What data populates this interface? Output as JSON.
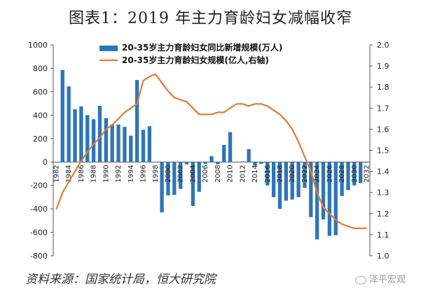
{
  "title": "图表1：2019 年主力育龄妇女减幅收窄",
  "source": "资料来源：国家统计局，恒大研究院",
  "watermark": "泽平宏观",
  "colors": {
    "bar": "#2e75b6",
    "line": "#e07b39",
    "axis": "#555555"
  },
  "chart_data": {
    "type": "bar+line",
    "legend": [
      {
        "name": "20-35岁主力育龄妇女同比新增规模(万人)",
        "kind": "bar"
      },
      {
        "name": "20-35岁主力育龄妇女规模(亿人,右轴)",
        "kind": "line"
      }
    ],
    "legend_position": "top-right",
    "x": [
      1982,
      1983,
      1984,
      1985,
      1986,
      1987,
      1988,
      1989,
      1990,
      1991,
      1992,
      1993,
      1994,
      1995,
      1996,
      1997,
      1998,
      1999,
      2000,
      2001,
      2002,
      2003,
      2004,
      2005,
      2006,
      2007,
      2008,
      2009,
      2010,
      2011,
      2012,
      2013,
      2014,
      2015,
      2016,
      2017,
      2018,
      2019,
      2020,
      2021,
      2022,
      2023,
      2024,
      2025,
      2026,
      2027,
      2028,
      2029,
      2030,
      2031,
      2032
    ],
    "x_tick_labels": [
      "1982",
      "1984",
      "1986",
      "1988",
      "1990",
      "1992",
      "1994",
      "1996",
      "1998",
      "2000",
      "2002",
      "2004",
      "2006",
      "2008",
      "2010",
      "2012",
      "2014",
      "2016",
      "2018",
      "2020",
      "2022",
      "2024",
      "2026",
      "2028",
      "2030",
      "2032"
    ],
    "bar_series": {
      "name": "20-35岁主力育龄妇女同比新增规模(万人)",
      "values": [
        0,
        785,
        645,
        450,
        475,
        400,
        365,
        480,
        375,
        320,
        320,
        300,
        225,
        700,
        275,
        305,
        0,
        -430,
        -285,
        -280,
        -230,
        -20,
        -375,
        -255,
        -15,
        50,
        -20,
        145,
        255,
        0,
        5,
        110,
        -30,
        -15,
        -200,
        -300,
        -400,
        -330,
        -320,
        -300,
        -220,
        -470,
        -660,
        -490,
        -630,
        -625,
        -290,
        -240,
        -200,
        -180,
        -5
      ]
    },
    "line_series": {
      "name": "20-35岁主力育龄妇女规模(亿人,右轴)",
      "values": [
        1.22,
        1.3,
        1.35,
        1.4,
        1.45,
        1.49,
        1.53,
        1.56,
        1.6,
        1.62,
        1.65,
        1.68,
        1.7,
        1.72,
        1.83,
        1.85,
        1.86,
        1.82,
        1.78,
        1.75,
        1.74,
        1.73,
        1.7,
        1.67,
        1.67,
        1.67,
        1.68,
        1.68,
        1.7,
        1.72,
        1.72,
        1.71,
        1.72,
        1.72,
        1.71,
        1.69,
        1.67,
        1.64,
        1.6,
        1.54,
        1.47,
        1.4,
        1.3,
        1.23,
        1.2,
        1.17,
        1.15,
        1.14,
        1.13,
        1.13,
        1.13
      ]
    },
    "y_left": {
      "min": -800,
      "max": 1000,
      "ticks": [
        -800,
        -600,
        -400,
        -200,
        0,
        200,
        400,
        600,
        800,
        1000
      ]
    },
    "y_right": {
      "min": 1.0,
      "max": 2.0,
      "ticks": [
        "1.0",
        "1.1",
        "1.2",
        "1.3",
        "1.4",
        "1.5",
        "1.6",
        "1.7",
        "1.8",
        "1.9",
        "2.0"
      ]
    },
    "grid": false
  }
}
